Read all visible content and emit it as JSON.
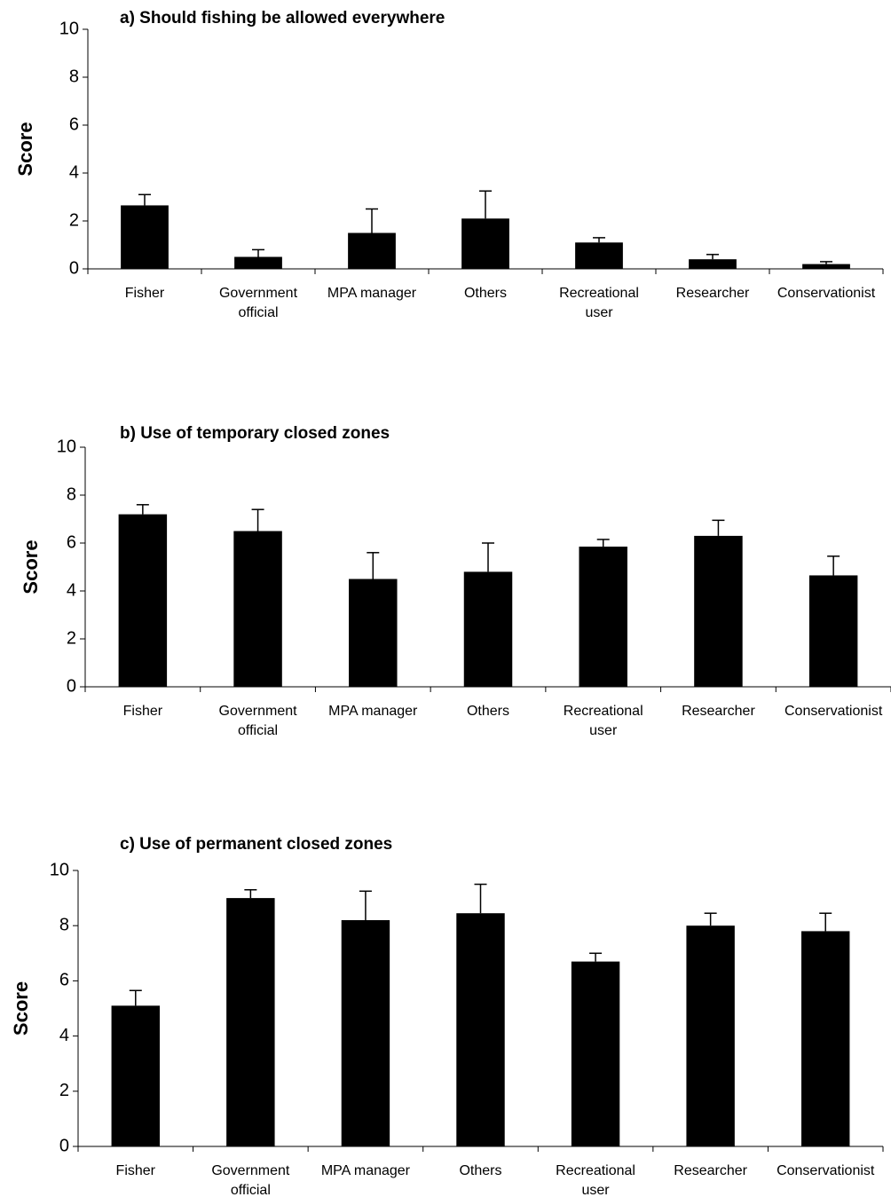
{
  "chart_data": [
    {
      "type": "bar",
      "title": "a) Should fishing be allowed everywhere",
      "xlabel": "",
      "ylabel": "Score",
      "ylim": [
        0,
        10
      ],
      "yticks": [
        0,
        2,
        4,
        6,
        8,
        10
      ],
      "categories": [
        [
          "Fisher"
        ],
        [
          "Government",
          "official"
        ],
        [
          "MPA manager"
        ],
        [
          "Others"
        ],
        [
          "Recreational",
          "user"
        ],
        [
          "Researcher"
        ],
        [
          "Conservationist"
        ]
      ],
      "values": [
        2.65,
        0.5,
        1.5,
        2.1,
        1.1,
        0.4,
        0.2
      ],
      "errors": [
        0.45,
        0.3,
        1.0,
        1.15,
        0.2,
        0.2,
        0.1
      ],
      "bar_color": "#000000",
      "grid": false
    },
    {
      "type": "bar",
      "title": "b) Use of temporary closed zones",
      "xlabel": "",
      "ylabel": "Score",
      "ylim": [
        0,
        10
      ],
      "yticks": [
        0,
        2,
        4,
        6,
        8,
        10
      ],
      "categories": [
        [
          "Fisher"
        ],
        [
          "Government",
          "official"
        ],
        [
          "MPA manager"
        ],
        [
          "Others"
        ],
        [
          "Recreational",
          "user"
        ],
        [
          "Researcher"
        ],
        [
          "Conservationist"
        ]
      ],
      "values": [
        7.2,
        6.5,
        4.5,
        4.8,
        5.85,
        6.3,
        4.65
      ],
      "errors": [
        0.4,
        0.9,
        1.1,
        1.2,
        0.3,
        0.65,
        0.8
      ],
      "bar_color": "#000000",
      "grid": false
    },
    {
      "type": "bar",
      "title": "c) Use of permanent closed zones",
      "xlabel": "",
      "ylabel": "Score",
      "ylim": [
        0,
        10
      ],
      "yticks": [
        0,
        2,
        4,
        6,
        8,
        10
      ],
      "categories": [
        [
          "Fisher"
        ],
        [
          "Government",
          "official"
        ],
        [
          "MPA manager"
        ],
        [
          "Others"
        ],
        [
          "Recreational",
          "user"
        ],
        [
          "Researcher"
        ],
        [
          "Conservationist"
        ]
      ],
      "values": [
        5.1,
        9.0,
        8.2,
        8.45,
        6.7,
        8.0,
        7.8
      ],
      "errors": [
        0.55,
        0.3,
        1.05,
        1.05,
        0.3,
        0.45,
        0.65
      ],
      "bar_color": "#000000",
      "grid": false
    }
  ]
}
